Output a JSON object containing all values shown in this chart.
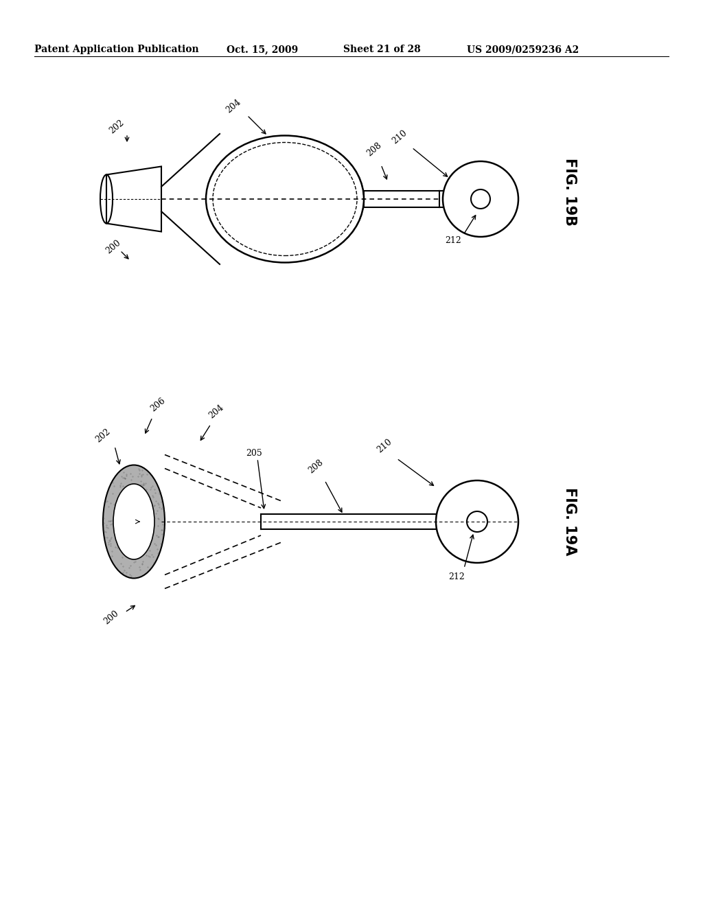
{
  "header_left": "Patent Application Publication",
  "header_date": "Oct. 15, 2009",
  "header_sheet": "Sheet 21 of 28",
  "header_patent": "US 2009/0259236 A2",
  "fig_top_label": "FIG. 19B",
  "fig_bottom_label": "FIG. 19A",
  "bg_color": "#ffffff",
  "line_color": "#000000",
  "dashed_color": "#555555",
  "shade_color": "#aaaaaa",
  "labels_top": [
    "200",
    "202",
    "204",
    "208",
    "210",
    "212"
  ],
  "labels_bottom": [
    "200",
    "202",
    "204",
    "205",
    "206",
    "208",
    "210",
    "212"
  ]
}
